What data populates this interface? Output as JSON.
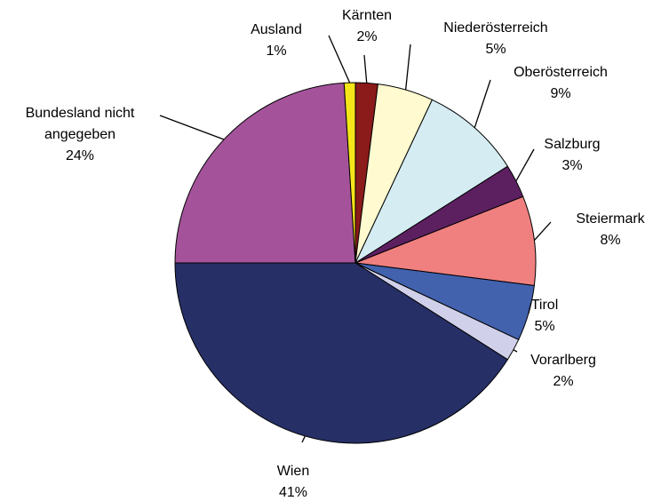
{
  "chart_data": {
    "type": "pie",
    "categories": [
      "Kärnten",
      "Niederösterreich",
      "Oberösterreich",
      "Salzburg",
      "Steiermark",
      "Tirol",
      "Vorarlberg",
      "Wien",
      "Bundesland nicht angegeben",
      "Ausland"
    ],
    "values": [
      2,
      5,
      9,
      3,
      8,
      5,
      2,
      41,
      24,
      1
    ],
    "value_labels": [
      "2%",
      "5%",
      "9%",
      "3%",
      "8%",
      "5%",
      "2%",
      "41%",
      "24%",
      "1%"
    ],
    "colors": [
      "#8b1a1a",
      "#fffad0",
      "#d4ecf2",
      "#5c2061",
      "#f08080",
      "#4262ae",
      "#d0d0ea",
      "#262f66",
      "#a4539a",
      "#f5e61a"
    ]
  }
}
